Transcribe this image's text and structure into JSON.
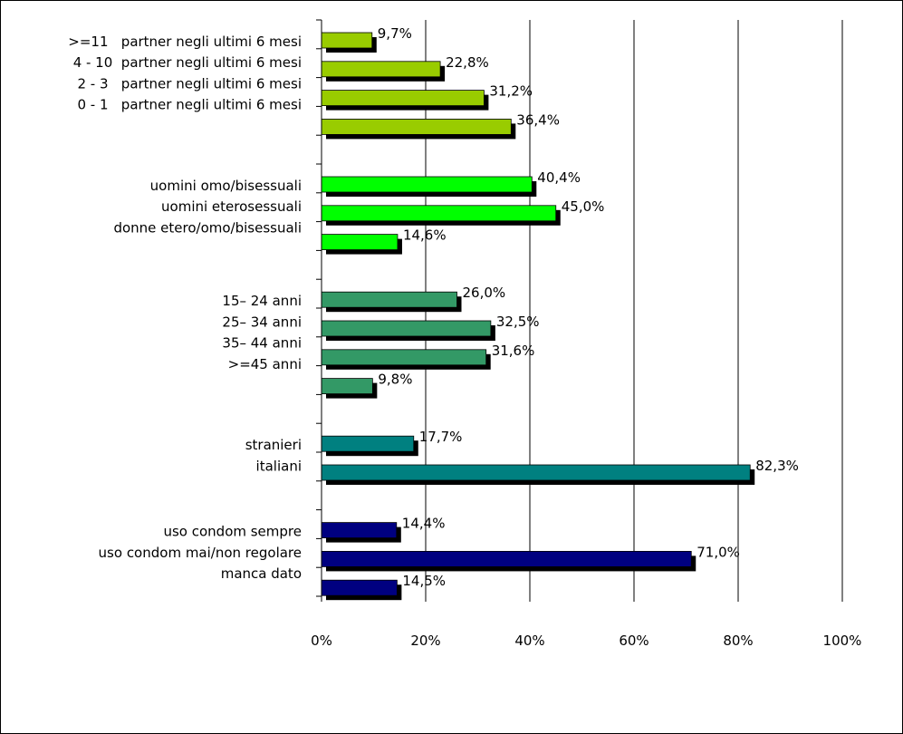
{
  "chart_data": {
    "type": "bar",
    "orientation": "horizontal",
    "title": "",
    "xlabel": "",
    "ylabel": "",
    "xlim": [
      0,
      100
    ],
    "grid": true,
    "legend": "none",
    "x_ticks": [
      "0%",
      "20%",
      "40%",
      "60%",
      "80%",
      "100%"
    ],
    "groups": [
      {
        "color": "#99CC00",
        "bars": [
          {
            "label": ">=11   partner negli ultimi 6 mesi",
            "value": 9.7,
            "value_label": "9,7%"
          },
          {
            "label": "4 - 10  partner negli ultimi 6 mesi",
            "value": 22.8,
            "value_label": "22,8%"
          },
          {
            "label": "2 - 3   partner negli ultimi 6 mesi",
            "value": 31.2,
            "value_label": "31,2%"
          },
          {
            "label": "0 - 1   partner negli ultimi 6 mesi",
            "value": 36.4,
            "value_label": "36,4%"
          }
        ]
      },
      {
        "color": "#00FF00",
        "bars": [
          {
            "label": "uomini omo/bisessuali",
            "value": 40.4,
            "value_label": "40,4%"
          },
          {
            "label": "uomini eterosessuali",
            "value": 45.0,
            "value_label": "45,0%"
          },
          {
            "label": "donne etero/omo/bisessuali",
            "value": 14.6,
            "value_label": "14,6%"
          }
        ]
      },
      {
        "color": "#339966",
        "bars": [
          {
            "label": "15– 24 anni",
            "value": 26.0,
            "value_label": "26,0%"
          },
          {
            "label": "25– 34 anni",
            "value": 32.5,
            "value_label": "32,5%"
          },
          {
            "label": "35– 44 anni",
            "value": 31.6,
            "value_label": "31,6%"
          },
          {
            "label": ">=45 anni",
            "value": 9.8,
            "value_label": "9,8%"
          }
        ]
      },
      {
        "color": "#008080",
        "bars": [
          {
            "label": "stranieri",
            "value": 17.7,
            "value_label": "17,7%"
          },
          {
            "label": "italiani",
            "value": 82.3,
            "value_label": "82,3%"
          }
        ]
      },
      {
        "color": "#000080",
        "bars": [
          {
            "label": "uso condom sempre",
            "value": 14.4,
            "value_label": "14,4%"
          },
          {
            "label": "uso condom mai/non regolare",
            "value": 71.0,
            "value_label": "71,0%"
          },
          {
            "label": "manca dato",
            "value": 14.5,
            "value_label": "14,5%"
          }
        ]
      }
    ]
  }
}
